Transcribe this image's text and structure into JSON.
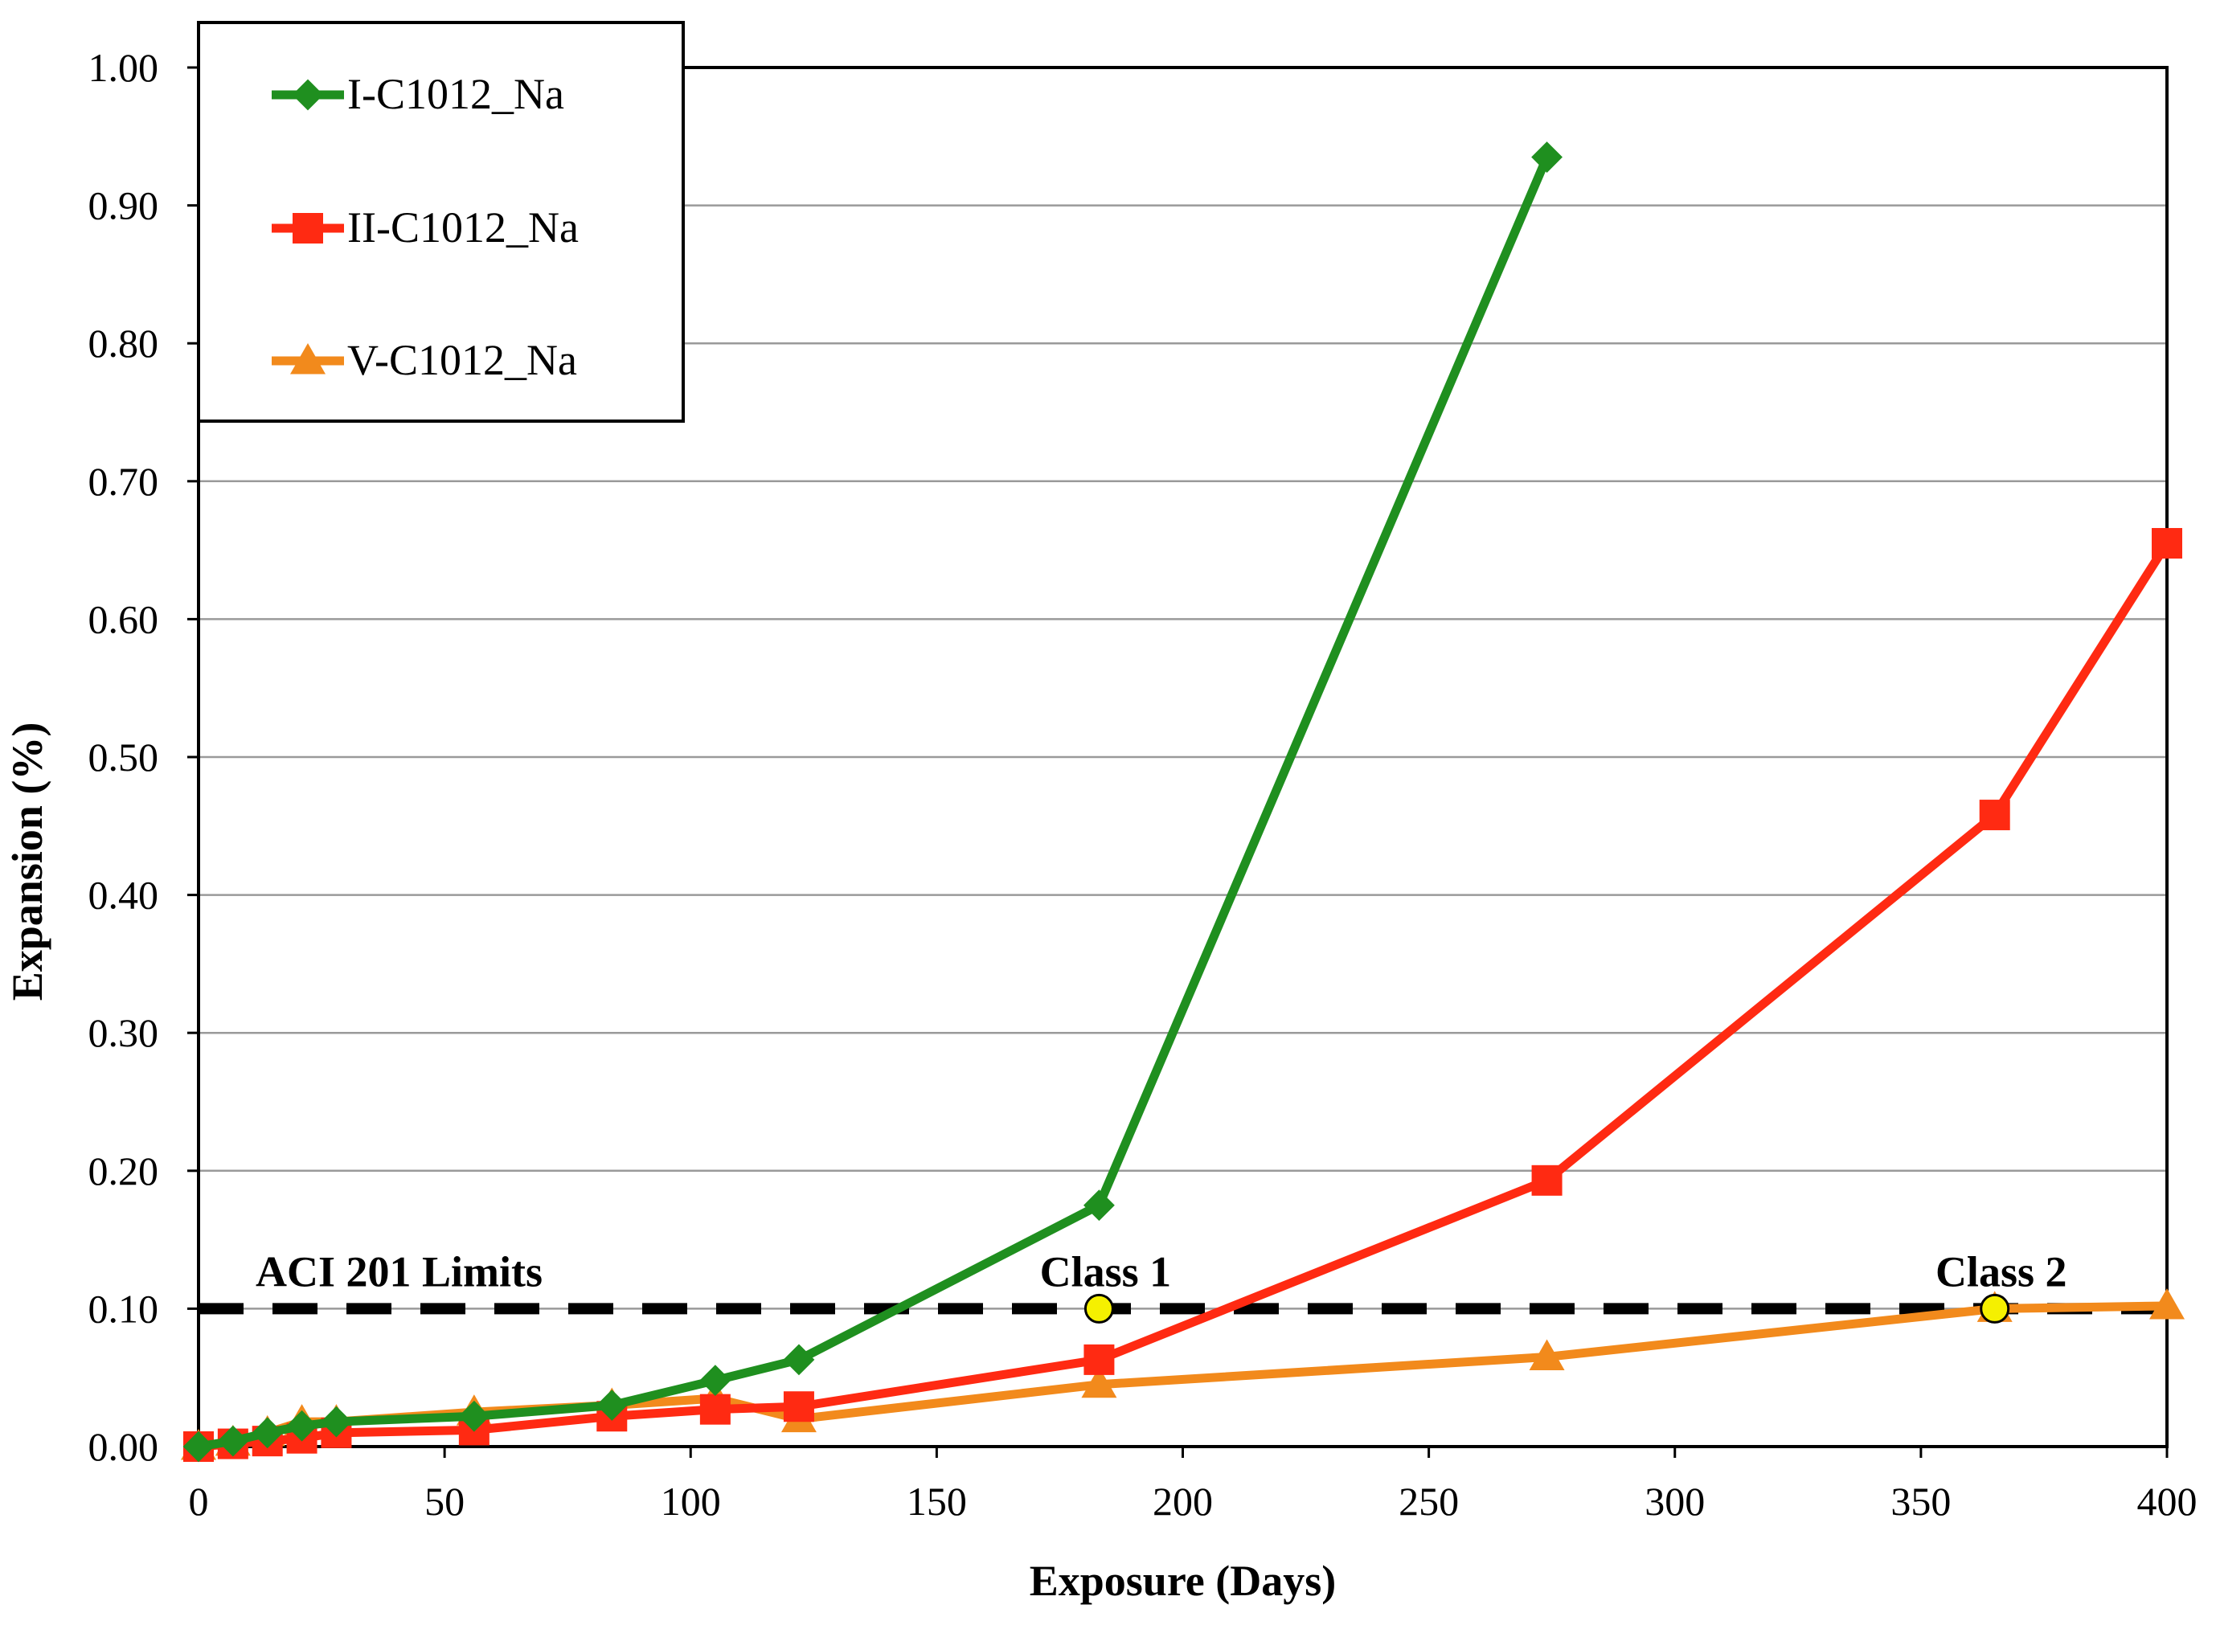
{
  "chart_data": {
    "type": "line",
    "title": "",
    "xlabel": "Exposure (Days)",
    "ylabel": "Expansion (%)",
    "xlim": [
      0,
      400
    ],
    "ylim": [
      0,
      1.0
    ],
    "x_ticks": [
      0,
      50,
      100,
      150,
      200,
      250,
      300,
      350,
      400
    ],
    "x_tick_labels": [
      "0",
      "50",
      "100",
      "150",
      "200",
      "250",
      "300",
      "350",
      "400"
    ],
    "y_ticks": [
      0,
      0.1,
      0.2,
      0.3,
      0.4,
      0.5,
      0.6,
      0.7,
      0.8,
      0.9,
      1.0
    ],
    "y_tick_labels": [
      "0.00",
      "0.10",
      "0.20",
      "0.30",
      "0.40",
      "0.50",
      "0.60",
      "0.70",
      "0.80",
      "0.90",
      "1.00"
    ],
    "grid": "horizontal",
    "legend_position": "top-left",
    "series": [
      {
        "name": "I-C1012_Na",
        "color": "#1f8f1f",
        "marker": "diamond",
        "x": [
          0,
          7,
          14,
          21,
          28,
          56,
          84,
          105,
          122,
          183,
          274
        ],
        "y": [
          0.0,
          0.004,
          0.01,
          0.015,
          0.018,
          0.022,
          0.03,
          0.048,
          0.063,
          0.175,
          0.935
        ]
      },
      {
        "name": "II-C1012_Na",
        "color": "#ff2a12",
        "marker": "square",
        "x": [
          0,
          7,
          14,
          21,
          28,
          56,
          84,
          105,
          122,
          183,
          274,
          365,
          400
        ],
        "y": [
          0.0,
          0.002,
          0.004,
          0.006,
          0.01,
          0.012,
          0.022,
          0.027,
          0.029,
          0.063,
          0.193,
          0.458,
          0.655
        ]
      },
      {
        "name": "V-C1012_Na",
        "color": "#f28a1c",
        "marker": "triangle",
        "x": [
          0,
          7,
          14,
          21,
          28,
          56,
          84,
          105,
          122,
          183,
          274,
          365,
          400
        ],
        "y": [
          0.0,
          0.003,
          0.01,
          0.018,
          0.018,
          0.025,
          0.03,
          0.035,
          0.02,
          0.045,
          0.065,
          0.1,
          0.102
        ]
      }
    ],
    "reference_line": {
      "label": "ACI 201 Limits",
      "y": 0.1,
      "color": "#000000",
      "style": "dashed"
    },
    "class_markers": [
      {
        "label": "Class 1",
        "x": 183,
        "y": 0.1,
        "color": "#f5f000"
      },
      {
        "label": "Class 2",
        "x": 365,
        "y": 0.1,
        "color": "#f5f000"
      }
    ]
  }
}
